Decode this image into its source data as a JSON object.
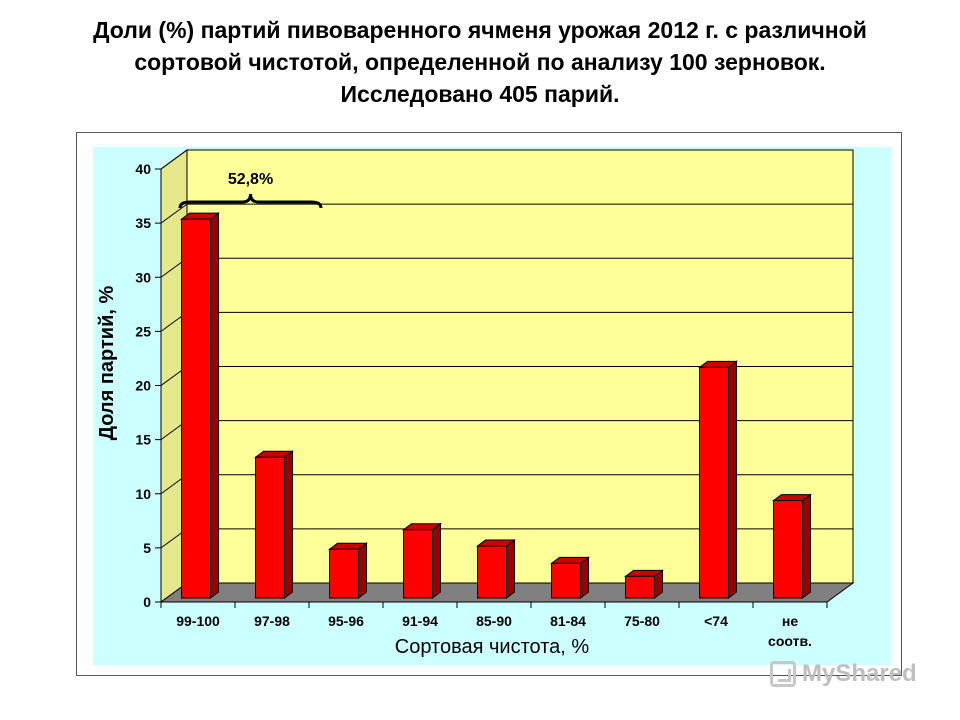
{
  "title_lines": [
    "Доли (%) партий пивоваренного ячменя урожая 2012 г. с различной",
    "сортовой чистотой, определенной по анализу 100 зерновок.",
    "Исследовано 405 парий."
  ],
  "watermark": "MyShared",
  "colors": {
    "plot_area": "#ffff99",
    "panel": "#ccffff",
    "floor": "#808080",
    "bar_front": "#ff0000",
    "bar_side": "#990000",
    "bar_top": "#cc0000",
    "grid": "#000000"
  },
  "chart_data": {
    "type": "bar",
    "title": "",
    "xlabel": "Сортовая чистота, %",
    "ylabel": "Доля партий, %",
    "categories": [
      "99-100",
      "97-98",
      "95-96",
      "91-94",
      "85-90",
      "81-84",
      "75-80",
      "<74",
      "не соотв."
    ],
    "values": [
      35.0,
      13.0,
      4.5,
      6.3,
      4.8,
      3.2,
      2.0,
      21.3,
      9.0
    ],
    "ylim": [
      0,
      40
    ],
    "yticks": [
      0,
      5,
      10,
      15,
      20,
      25,
      30,
      35,
      40
    ],
    "grid": true,
    "legend": "none",
    "annotation": "52,8%"
  }
}
